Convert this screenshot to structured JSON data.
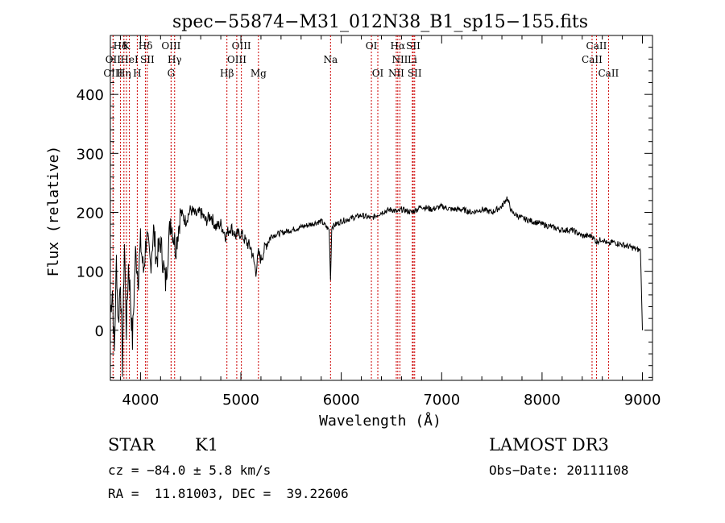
{
  "chart_data": {
    "type": "line",
    "title": "spec−55874−M31_012N38_B1_sp15−155.fits",
    "xlabel": "Wavelength (Å)",
    "ylabel": "Flux (relative)",
    "xlim": [
      3700,
      9100
    ],
    "ylim": [
      -85,
      500
    ],
    "xticks": [
      4000,
      5000,
      6000,
      7000,
      8000,
      9000
    ],
    "yticks": [
      0,
      100,
      200,
      300,
      400
    ],
    "series": [
      {
        "name": "flux",
        "x": [
          3700,
          3720,
          3740,
          3760,
          3780,
          3800,
          3820,
          3840,
          3860,
          3880,
          3900,
          3920,
          3950,
          3980,
          4000,
          4030,
          4060,
          4100,
          4130,
          4160,
          4200,
          4250,
          4300,
          4350,
          4400,
          4450,
          4500,
          4550,
          4600,
          4650,
          4700,
          4750,
          4800,
          4850,
          4880,
          4900,
          4950,
          5000,
          5050,
          5100,
          5150,
          5175,
          5200,
          5250,
          5300,
          5400,
          5500,
          5600,
          5700,
          5800,
          5880,
          5893,
          5905,
          5950,
          6000,
          6100,
          6200,
          6300,
          6400,
          6500,
          6563,
          6600,
          6700,
          6800,
          6900,
          7000,
          7100,
          7200,
          7300,
          7400,
          7500,
          7600,
          7650,
          7700,
          7800,
          7900,
          8000,
          8100,
          8200,
          8300,
          8400,
          8498,
          8542,
          8600,
          8662,
          8700,
          8800,
          8900,
          8980,
          9000
        ],
        "y": [
          30,
          70,
          -40,
          120,
          10,
          90,
          -60,
          150,
          0,
          110,
          60,
          -20,
          130,
          90,
          150,
          100,
          160,
          110,
          170,
          120,
          150,
          80,
          190,
          140,
          200,
          185,
          205,
          195,
          200,
          185,
          195,
          175,
          180,
          160,
          170,
          175,
          160,
          165,
          150,
          140,
          100,
          130,
          120,
          145,
          160,
          165,
          170,
          175,
          180,
          185,
          170,
          85,
          175,
          180,
          185,
          190,
          195,
          190,
          200,
          205,
          200,
          205,
          200,
          210,
          205,
          210,
          205,
          205,
          200,
          205,
          200,
          210,
          225,
          200,
          190,
          185,
          180,
          175,
          170,
          170,
          160,
          160,
          150,
          155,
          145,
          150,
          145,
          140,
          135,
          0
        ]
      }
    ],
    "spectral_lines": [
      {
        "label": "Hδ",
        "x": 3800,
        "row": 0
      },
      {
        "label": "K",
        "x": 3860,
        "row": 0
      },
      {
        "label": "Hδ",
        "x": 4050,
        "row": 0
      },
      {
        "label": "OIII",
        "x": 4305,
        "row": 0
      },
      {
        "label": "OIII",
        "x": 5005,
        "row": 0
      },
      {
        "label": "OI",
        "x": 6300,
        "row": 0
      },
      {
        "label": "Hα",
        "x": 6563,
        "row": 0
      },
      {
        "label": "SII",
        "x": 6717,
        "row": 0
      },
      {
        "label": "CaII",
        "x": 8542,
        "row": 0
      },
      {
        "label": "OII",
        "x": 3727,
        "row": 1
      },
      {
        "label": "HeI",
        "x": 3889,
        "row": 1
      },
      {
        "label": "SII",
        "x": 4068,
        "row": 1
      },
      {
        "label": "Hγ",
        "x": 4340,
        "row": 1
      },
      {
        "label": "OIII",
        "x": 4959,
        "row": 1
      },
      {
        "label": "Na",
        "x": 5893,
        "row": 1
      },
      {
        "label": "NII",
        "x": 6584,
        "row": 1
      },
      {
        "label": "Li",
        "x": 6708,
        "row": 1
      },
      {
        "label": "CaII",
        "x": 8498,
        "row": 1
      },
      {
        "label": "OIII",
        "x": 3727,
        "row": 2
      },
      {
        "label": "Hη",
        "x": 3835,
        "row": 2
      },
      {
        "label": "H",
        "x": 3968,
        "row": 2
      },
      {
        "label": "G",
        "x": 4305,
        "row": 2
      },
      {
        "label": "Hβ",
        "x": 4861,
        "row": 2
      },
      {
        "label": "Mg",
        "x": 5175,
        "row": 2
      },
      {
        "label": "OI",
        "x": 6364,
        "row": 2
      },
      {
        "label": "NII",
        "x": 6548,
        "row": 2
      },
      {
        "label": "SII",
        "x": 6731,
        "row": 2
      },
      {
        "label": "CaII",
        "x": 8662,
        "row": 2
      }
    ],
    "line_color": "#000000",
    "marker_color": "#cc0000"
  },
  "footer": {
    "object_class": "STAR",
    "subclass": "K1",
    "survey": "LAMOST DR3",
    "cz": "cz = −84.0 ± 5.8 km/s",
    "obs_date": "Obs−Date: 20111108",
    "coords": "RA =  11.81003, DEC =  39.22606"
  }
}
